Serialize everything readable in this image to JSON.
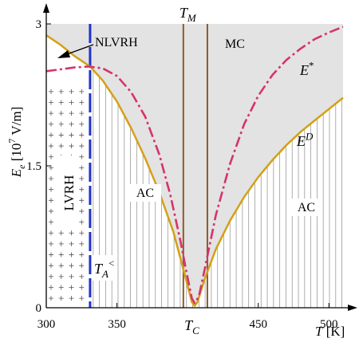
{
  "chart_data": {
    "type": "line",
    "title": "",
    "xlabel": {
      "main": "T",
      "unit": " [K]"
    },
    "ylabel": {
      "main": "E",
      "sub": "e",
      "unit_pre": " [10",
      "unit_sup": "7",
      "unit_post": " V/m]"
    },
    "xlim": [
      300,
      510
    ],
    "ylim": [
      0,
      3
    ],
    "x_ticks": [
      {
        "value": 300,
        "label": "300"
      },
      {
        "value": 350,
        "label": "350"
      },
      {
        "value": 450,
        "label": "450"
      },
      {
        "value": 500,
        "label": "500"
      }
    ],
    "y_ticks": [
      {
        "value": 0,
        "label": "0"
      },
      {
        "value": 1.5,
        "label": "1.5"
      },
      {
        "value": 3,
        "label": "3"
      }
    ],
    "vertical_lines": {
      "TA": 331,
      "TM_left": 397,
      "TM_right": 414,
      "TC": 404.5
    },
    "series": [
      {
        "name": "E^D",
        "style": "solid",
        "color": "#d4a017",
        "points": [
          [
            300,
            2.88
          ],
          [
            310,
            2.78
          ],
          [
            320,
            2.66
          ],
          [
            331,
            2.55
          ],
          [
            340,
            2.4
          ],
          [
            350,
            2.18
          ],
          [
            360,
            1.9
          ],
          [
            370,
            1.58
          ],
          [
            380,
            1.22
          ],
          [
            390,
            0.8
          ],
          [
            398,
            0.35
          ],
          [
            403,
            0.06
          ],
          [
            405,
            0.02
          ],
          [
            407,
            0.06
          ],
          [
            412,
            0.3
          ],
          [
            420,
            0.62
          ],
          [
            430,
            0.92
          ],
          [
            440,
            1.17
          ],
          [
            450,
            1.38
          ],
          [
            460,
            1.56
          ],
          [
            470,
            1.72
          ],
          [
            480,
            1.86
          ],
          [
            490,
            1.98
          ],
          [
            500,
            2.1
          ],
          [
            510,
            2.22
          ]
        ]
      },
      {
        "name": "E*",
        "style": "dash-dot",
        "color": "#d6336c",
        "points": [
          [
            300,
            2.5
          ],
          [
            310,
            2.52
          ],
          [
            320,
            2.54
          ],
          [
            330,
            2.55
          ],
          [
            340,
            2.53
          ],
          [
            350,
            2.45
          ],
          [
            360,
            2.28
          ],
          [
            370,
            2.02
          ],
          [
            380,
            1.62
          ],
          [
            388,
            1.18
          ],
          [
            395,
            0.7
          ],
          [
            400,
            0.32
          ],
          [
            403,
            0.1
          ],
          [
            405,
            0.05
          ],
          [
            408,
            0.12
          ],
          [
            412,
            0.4
          ],
          [
            420,
            0.98
          ],
          [
            430,
            1.52
          ],
          [
            440,
            1.94
          ],
          [
            450,
            2.24
          ],
          [
            460,
            2.46
          ],
          [
            470,
            2.62
          ],
          [
            480,
            2.74
          ],
          [
            490,
            2.84
          ],
          [
            500,
            2.91
          ],
          [
            510,
            2.97
          ]
        ]
      }
    ],
    "annotations": [
      {
        "main": "NLVRH"
      },
      {
        "main": "MC"
      },
      {
        "main": "E",
        "sup": "*"
      },
      {
        "main": "E",
        "sup": "D"
      },
      {
        "main": "AC"
      },
      {
        "main": "AC"
      },
      {
        "main": "LVRH"
      },
      {
        "main": "T",
        "sub": "M"
      },
      {
        "main": "T",
        "sub": "A",
        "sup": "<"
      },
      {
        "main": "T",
        "sub": "C"
      }
    ],
    "colors": {
      "mc_region": "#e3e3e3",
      "ta_line": "#2233cc",
      "tm_lines": "#8b5a2b",
      "hatch": "#9a9a9a",
      "plus": "#555555"
    },
    "grid": false
  }
}
